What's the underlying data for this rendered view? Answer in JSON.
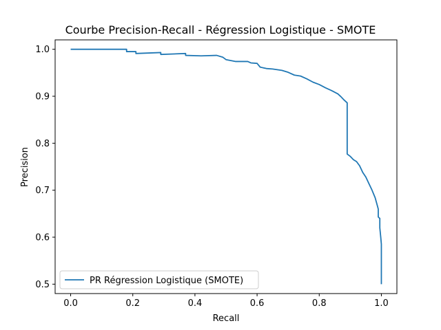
{
  "chart_data": {
    "type": "line",
    "title": "Courbe Precision-Recall - Régression Logistique - SMOTE",
    "xlabel": "Recall",
    "ylabel": "Precision",
    "xlim": [
      -0.05,
      1.05
    ],
    "ylim": [
      0.48,
      1.02
    ],
    "xticks": [
      0.0,
      0.2,
      0.4,
      0.6,
      0.8,
      1.0
    ],
    "xtick_labels": [
      "0.0",
      "0.2",
      "0.4",
      "0.6",
      "0.8",
      "1.0"
    ],
    "yticks": [
      0.5,
      0.6,
      0.7,
      0.8,
      0.9,
      1.0
    ],
    "ytick_labels": [
      "0.5",
      "0.6",
      "0.7",
      "0.8",
      "0.9",
      "1.0"
    ],
    "grid": false,
    "legend_position": "lower-left",
    "series": [
      {
        "name": "PR Régression Logistique (SMOTE)",
        "color": "#1f77b4",
        "points": [
          [
            0.0,
            1.0
          ],
          [
            0.18,
            1.0
          ],
          [
            0.18,
            0.995
          ],
          [
            0.21,
            0.995
          ],
          [
            0.21,
            0.991
          ],
          [
            0.29,
            0.993
          ],
          [
            0.29,
            0.989
          ],
          [
            0.37,
            0.991
          ],
          [
            0.37,
            0.987
          ],
          [
            0.42,
            0.986
          ],
          [
            0.47,
            0.987
          ],
          [
            0.49,
            0.983
          ],
          [
            0.5,
            0.978
          ],
          [
            0.53,
            0.974
          ],
          [
            0.57,
            0.974
          ],
          [
            0.58,
            0.971
          ],
          [
            0.6,
            0.97
          ],
          [
            0.61,
            0.962
          ],
          [
            0.63,
            0.959
          ],
          [
            0.65,
            0.958
          ],
          [
            0.68,
            0.955
          ],
          [
            0.7,
            0.951
          ],
          [
            0.72,
            0.945
          ],
          [
            0.74,
            0.943
          ],
          [
            0.76,
            0.937
          ],
          [
            0.78,
            0.93
          ],
          [
            0.8,
            0.925
          ],
          [
            0.82,
            0.918
          ],
          [
            0.84,
            0.912
          ],
          [
            0.86,
            0.905
          ],
          [
            0.87,
            0.899
          ],
          [
            0.88,
            0.892
          ],
          [
            0.89,
            0.886
          ],
          [
            0.89,
            0.777
          ],
          [
            0.9,
            0.772
          ],
          [
            0.91,
            0.765
          ],
          [
            0.92,
            0.761
          ],
          [
            0.93,
            0.752
          ],
          [
            0.94,
            0.738
          ],
          [
            0.95,
            0.728
          ],
          [
            0.96,
            0.714
          ],
          [
            0.97,
            0.7
          ],
          [
            0.98,
            0.684
          ],
          [
            0.985,
            0.672
          ],
          [
            0.99,
            0.66
          ],
          [
            0.99,
            0.643
          ],
          [
            0.995,
            0.64
          ],
          [
            0.995,
            0.62
          ],
          [
            0.998,
            0.6
          ],
          [
            1.0,
            0.585
          ],
          [
            1.0,
            0.5
          ]
        ]
      }
    ]
  }
}
